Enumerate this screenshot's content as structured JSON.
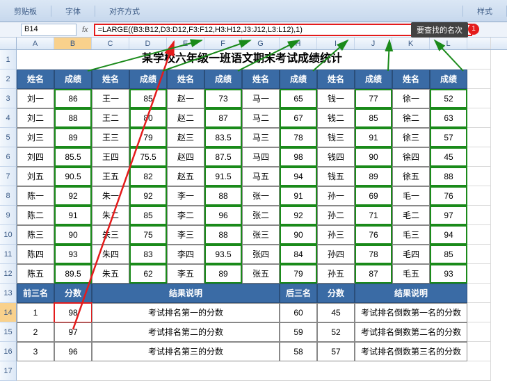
{
  "ribbon": {
    "g1": "剪贴板",
    "g2": "字体",
    "g3": "对齐方式",
    "g4": "样式"
  },
  "callout": "要查找的名次",
  "callout_badge": "1",
  "namebox": "B14",
  "formula": "=LARGE((B3:B12,D3:D12,F3:F12,H3:H12,J3:J12,L3:L12),1)",
  "cols": [
    "A",
    "B",
    "C",
    "D",
    "E",
    "F",
    "G",
    "H",
    "I",
    "J",
    "K",
    "L"
  ],
  "title": "某学校六年级一班语文期末考试成绩统计",
  "head": [
    "姓名",
    "成绩",
    "姓名",
    "成绩",
    "姓名",
    "成绩",
    "姓名",
    "成绩",
    "姓名",
    "成绩",
    "姓名",
    "成绩"
  ],
  "rows": [
    [
      "刘一",
      "86",
      "王一",
      "85",
      "赵一",
      "73",
      "马一",
      "65",
      "钱一",
      "77",
      "徐一",
      "52"
    ],
    [
      "刘二",
      "88",
      "王二",
      "80",
      "赵二",
      "87",
      "马二",
      "67",
      "钱二",
      "85",
      "徐二",
      "63"
    ],
    [
      "刘三",
      "89",
      "王三",
      "79",
      "赵三",
      "83.5",
      "马三",
      "78",
      "钱三",
      "91",
      "徐三",
      "57"
    ],
    [
      "刘四",
      "85.5",
      "王四",
      "75.5",
      "赵四",
      "87.5",
      "马四",
      "98",
      "钱四",
      "90",
      "徐四",
      "45"
    ],
    [
      "刘五",
      "90.5",
      "王五",
      "82",
      "赵五",
      "91.5",
      "马五",
      "94",
      "钱五",
      "89",
      "徐五",
      "88"
    ],
    [
      "陈一",
      "92",
      "朱一",
      "92",
      "李一",
      "88",
      "张一",
      "91",
      "孙一",
      "69",
      "毛一",
      "76"
    ],
    [
      "陈二",
      "91",
      "朱二",
      "85",
      "李二",
      "96",
      "张二",
      "92",
      "孙二",
      "71",
      "毛二",
      "97"
    ],
    [
      "陈三",
      "90",
      "朱三",
      "75",
      "李三",
      "88",
      "张三",
      "90",
      "孙三",
      "76",
      "毛三",
      "94"
    ],
    [
      "陈四",
      "93",
      "朱四",
      "83",
      "李四",
      "93.5",
      "张四",
      "84",
      "孙四",
      "78",
      "毛四",
      "85"
    ],
    [
      "陈五",
      "89.5",
      "朱五",
      "62",
      "李五",
      "89",
      "张五",
      "79",
      "孙五",
      "87",
      "毛五",
      "93"
    ]
  ],
  "sub_head": {
    "a": "前三名",
    "b": "分数",
    "c": "结果说明",
    "d": "后三名",
    "e": "分数",
    "f": "结果说明"
  },
  "results": [
    {
      "r": "1",
      "s": "98",
      "d": "考试排名第一的分数",
      "r2": "60",
      "s2": "45",
      "d2": "考试排名倒数第一名的分数"
    },
    {
      "r": "2",
      "s": "97",
      "d": "考试排名第二的分数",
      "r2": "59",
      "s2": "52",
      "d2": "考试排名倒数第二名的分数"
    },
    {
      "r": "3",
      "s": "96",
      "d": "考试排名第三的分数",
      "r2": "58",
      "s2": "57",
      "d2": "考试排名倒数第三名的分数"
    }
  ],
  "colors": {
    "formula_border": "#e41b1b",
    "data_border": "#1a8a1a",
    "header_bg": "#3a6ba5",
    "arrow_red": "#e41b1b",
    "arrow_green": "#1a8a1a"
  }
}
